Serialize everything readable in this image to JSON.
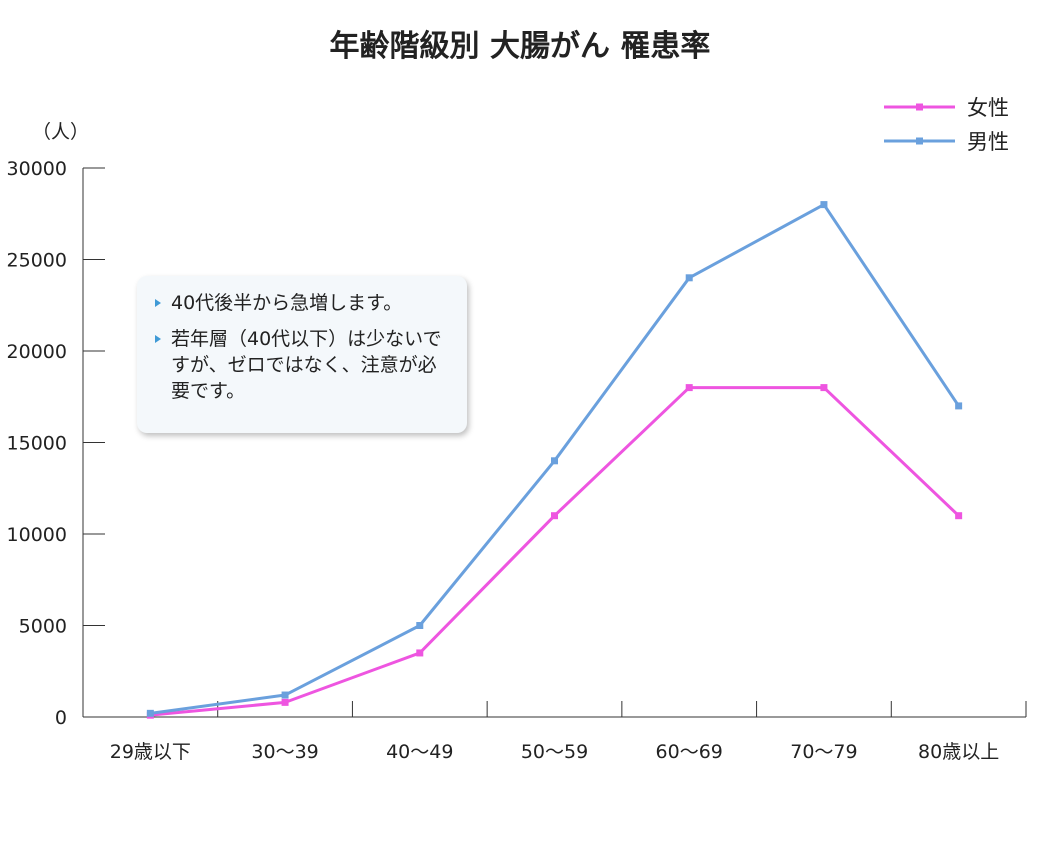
{
  "chart_data": {
    "type": "line",
    "title": "年齢階級別 大腸がん 罹患率",
    "unit_label": "（人）",
    "categories": [
      "29歳以下",
      "30〜39",
      "40〜49",
      "50〜59",
      "60〜69",
      "70〜79",
      "80歳以上"
    ],
    "ylim": [
      0,
      30000
    ],
    "yticks": [
      0,
      5000,
      10000,
      15000,
      20000,
      25000,
      30000
    ],
    "series": [
      {
        "name": "女性",
        "color": "#ee55e0",
        "values": [
          100,
          800,
          3500,
          11000,
          18000,
          18000,
          11000
        ]
      },
      {
        "name": "男性",
        "color": "#6aa0dd",
        "values": [
          200,
          1200,
          5000,
          14000,
          24000,
          28000,
          17000
        ]
      }
    ],
    "legend_position": "top-right",
    "grid": false
  },
  "callout": {
    "bullets": [
      "40代後半から急増します。",
      "若年層（40代以下）は少ないですが、ゼロではなく、注意が必要です。"
    ]
  }
}
